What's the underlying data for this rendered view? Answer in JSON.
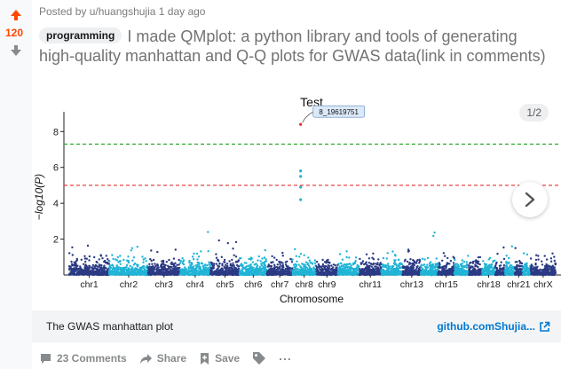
{
  "votes": {
    "count": "120"
  },
  "byline": "Posted by u/huangshujia 1 day ago",
  "post": {
    "flair": "programming",
    "title": "I made QMplot: a python library and tools of generating high-quality manhattan and Q-Q plots for GWAS data(link in comments)"
  },
  "gallery": {
    "counter": "1/2"
  },
  "caption": {
    "text": "The GWAS manhattan plot",
    "link": "github.comShujia..."
  },
  "actions": {
    "comments": "23 Comments",
    "share": "Share",
    "save": "Save",
    "more": "..."
  },
  "colors": {
    "upvote": "#ff4500",
    "link": "#0079d3",
    "dark_series": "#2b3a84",
    "light_series": "#20b4d6",
    "significance_line": "#e33030",
    "suggestive_line": "#2aa82a"
  },
  "chart_data": {
    "type": "scatter",
    "title": "Test",
    "xlabel": "Chromosome",
    "ylabel": "−log10(P)",
    "y_ticks": [
      2,
      4,
      6,
      8
    ],
    "ylim": [
      0,
      9.5
    ],
    "categories": [
      "chr1",
      "chr2",
      "chr3",
      "chr4",
      "chr5",
      "chr6",
      "chr7",
      "chr8",
      "chr9",
      "chr11",
      "chr13",
      "chr15",
      "chr18",
      "chr21",
      "chrX"
    ],
    "thresholds": [
      {
        "value": 7.3,
        "color": "#2aa82a",
        "style": "dashed"
      },
      {
        "value": 5.0,
        "color": "#e33030",
        "style": "dashed"
      }
    ],
    "top_hit": {
      "label": "8_19619751",
      "chromosome": "chr8",
      "y": 8.4
    },
    "peak_points": [
      {
        "chromosome": "chr8",
        "y": 8.4
      },
      {
        "chromosome": "chr8",
        "y": 5.8
      },
      {
        "chromosome": "chr8",
        "y": 5.5
      },
      {
        "chromosome": "chr8",
        "y": 4.9
      },
      {
        "chromosome": "chr8",
        "y": 4.2
      }
    ],
    "grid": false,
    "series_colors": [
      "#2b3a84",
      "#20b4d6"
    ]
  }
}
